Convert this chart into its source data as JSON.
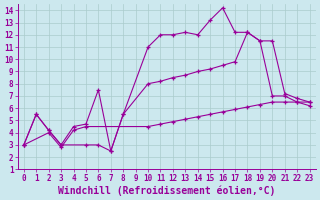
{
  "xlabel": "Windchill (Refroidissement éolien,°C)",
  "ylabel": "",
  "xlim": [
    -0.5,
    23.5
  ],
  "ylim": [
    1,
    14.5
  ],
  "xticks": [
    0,
    1,
    2,
    3,
    4,
    5,
    6,
    7,
    8,
    9,
    10,
    11,
    12,
    13,
    14,
    15,
    16,
    17,
    18,
    19,
    20,
    21,
    22,
    23
  ],
  "yticks": [
    1,
    2,
    3,
    4,
    5,
    6,
    7,
    8,
    9,
    10,
    11,
    12,
    13,
    14
  ],
  "bg_color": "#cce8ee",
  "line_color": "#990099",
  "grid_color": "#aacccc",
  "line1_x": [
    0,
    1,
    2,
    3,
    5,
    6,
    7,
    8,
    10,
    11,
    12,
    13,
    14,
    15,
    16,
    17,
    18,
    19,
    20,
    21,
    22,
    23
  ],
  "line1_y": [
    3.0,
    5.5,
    4.2,
    3.0,
    3.0,
    3.0,
    2.5,
    5.5,
    11.0,
    12.0,
    12.0,
    12.2,
    12.0,
    13.2,
    14.2,
    12.2,
    12.2,
    11.5,
    7.0,
    7.0,
    6.5,
    6.5
  ],
  "line2_x": [
    0,
    1,
    2,
    3,
    4,
    5,
    6,
    7,
    8,
    10,
    11,
    12,
    13,
    14,
    15,
    16,
    17,
    18,
    19,
    20,
    21,
    22,
    23
  ],
  "line2_y": [
    3.0,
    5.5,
    4.2,
    3.0,
    4.5,
    4.7,
    7.5,
    2.5,
    5.5,
    8.0,
    8.2,
    8.5,
    8.7,
    9.0,
    9.2,
    9.5,
    9.8,
    12.2,
    11.5,
    11.5,
    7.2,
    6.8,
    6.5
  ],
  "line3_x": [
    0,
    2,
    3,
    4,
    5,
    10,
    11,
    12,
    13,
    14,
    15,
    16,
    17,
    18,
    19,
    20,
    21,
    22,
    23
  ],
  "line3_y": [
    3.0,
    4.0,
    2.8,
    4.2,
    4.5,
    4.5,
    4.7,
    4.9,
    5.1,
    5.3,
    5.5,
    5.7,
    5.9,
    6.1,
    6.3,
    6.5,
    6.5,
    6.5,
    6.2
  ],
  "tick_fontsize": 5.5,
  "label_fontsize": 7.0
}
